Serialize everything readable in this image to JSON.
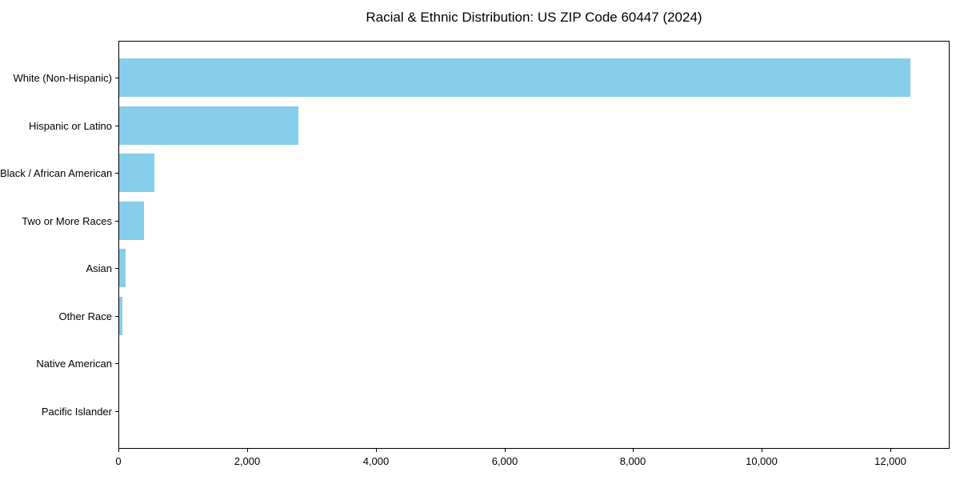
{
  "chart_data": {
    "type": "bar",
    "orientation": "horizontal",
    "title": "Racial & Ethnic Distribution: US ZIP Code 60447 (2024)",
    "xlabel": "",
    "ylabel": "",
    "categories": [
      "White (Non-Hispanic)",
      "Hispanic or Latino",
      "Black / African American",
      "Two or More Races",
      "Asian",
      "Other Race",
      "Native American",
      "Pacific Islander"
    ],
    "values": [
      12300,
      2780,
      550,
      380,
      100,
      50,
      0,
      0
    ],
    "xlim": [
      0,
      12920
    ],
    "x_ticks": [
      0,
      2000,
      4000,
      6000,
      8000,
      10000,
      12000
    ],
    "x_tick_labels": [
      "0",
      "2,000",
      "4,000",
      "6,000",
      "8,000",
      "10,000",
      "12,000"
    ],
    "bar_color": "#87CEEB",
    "spine_color": "#000000",
    "background_color": "#ffffff",
    "grid": false,
    "legend": null
  }
}
